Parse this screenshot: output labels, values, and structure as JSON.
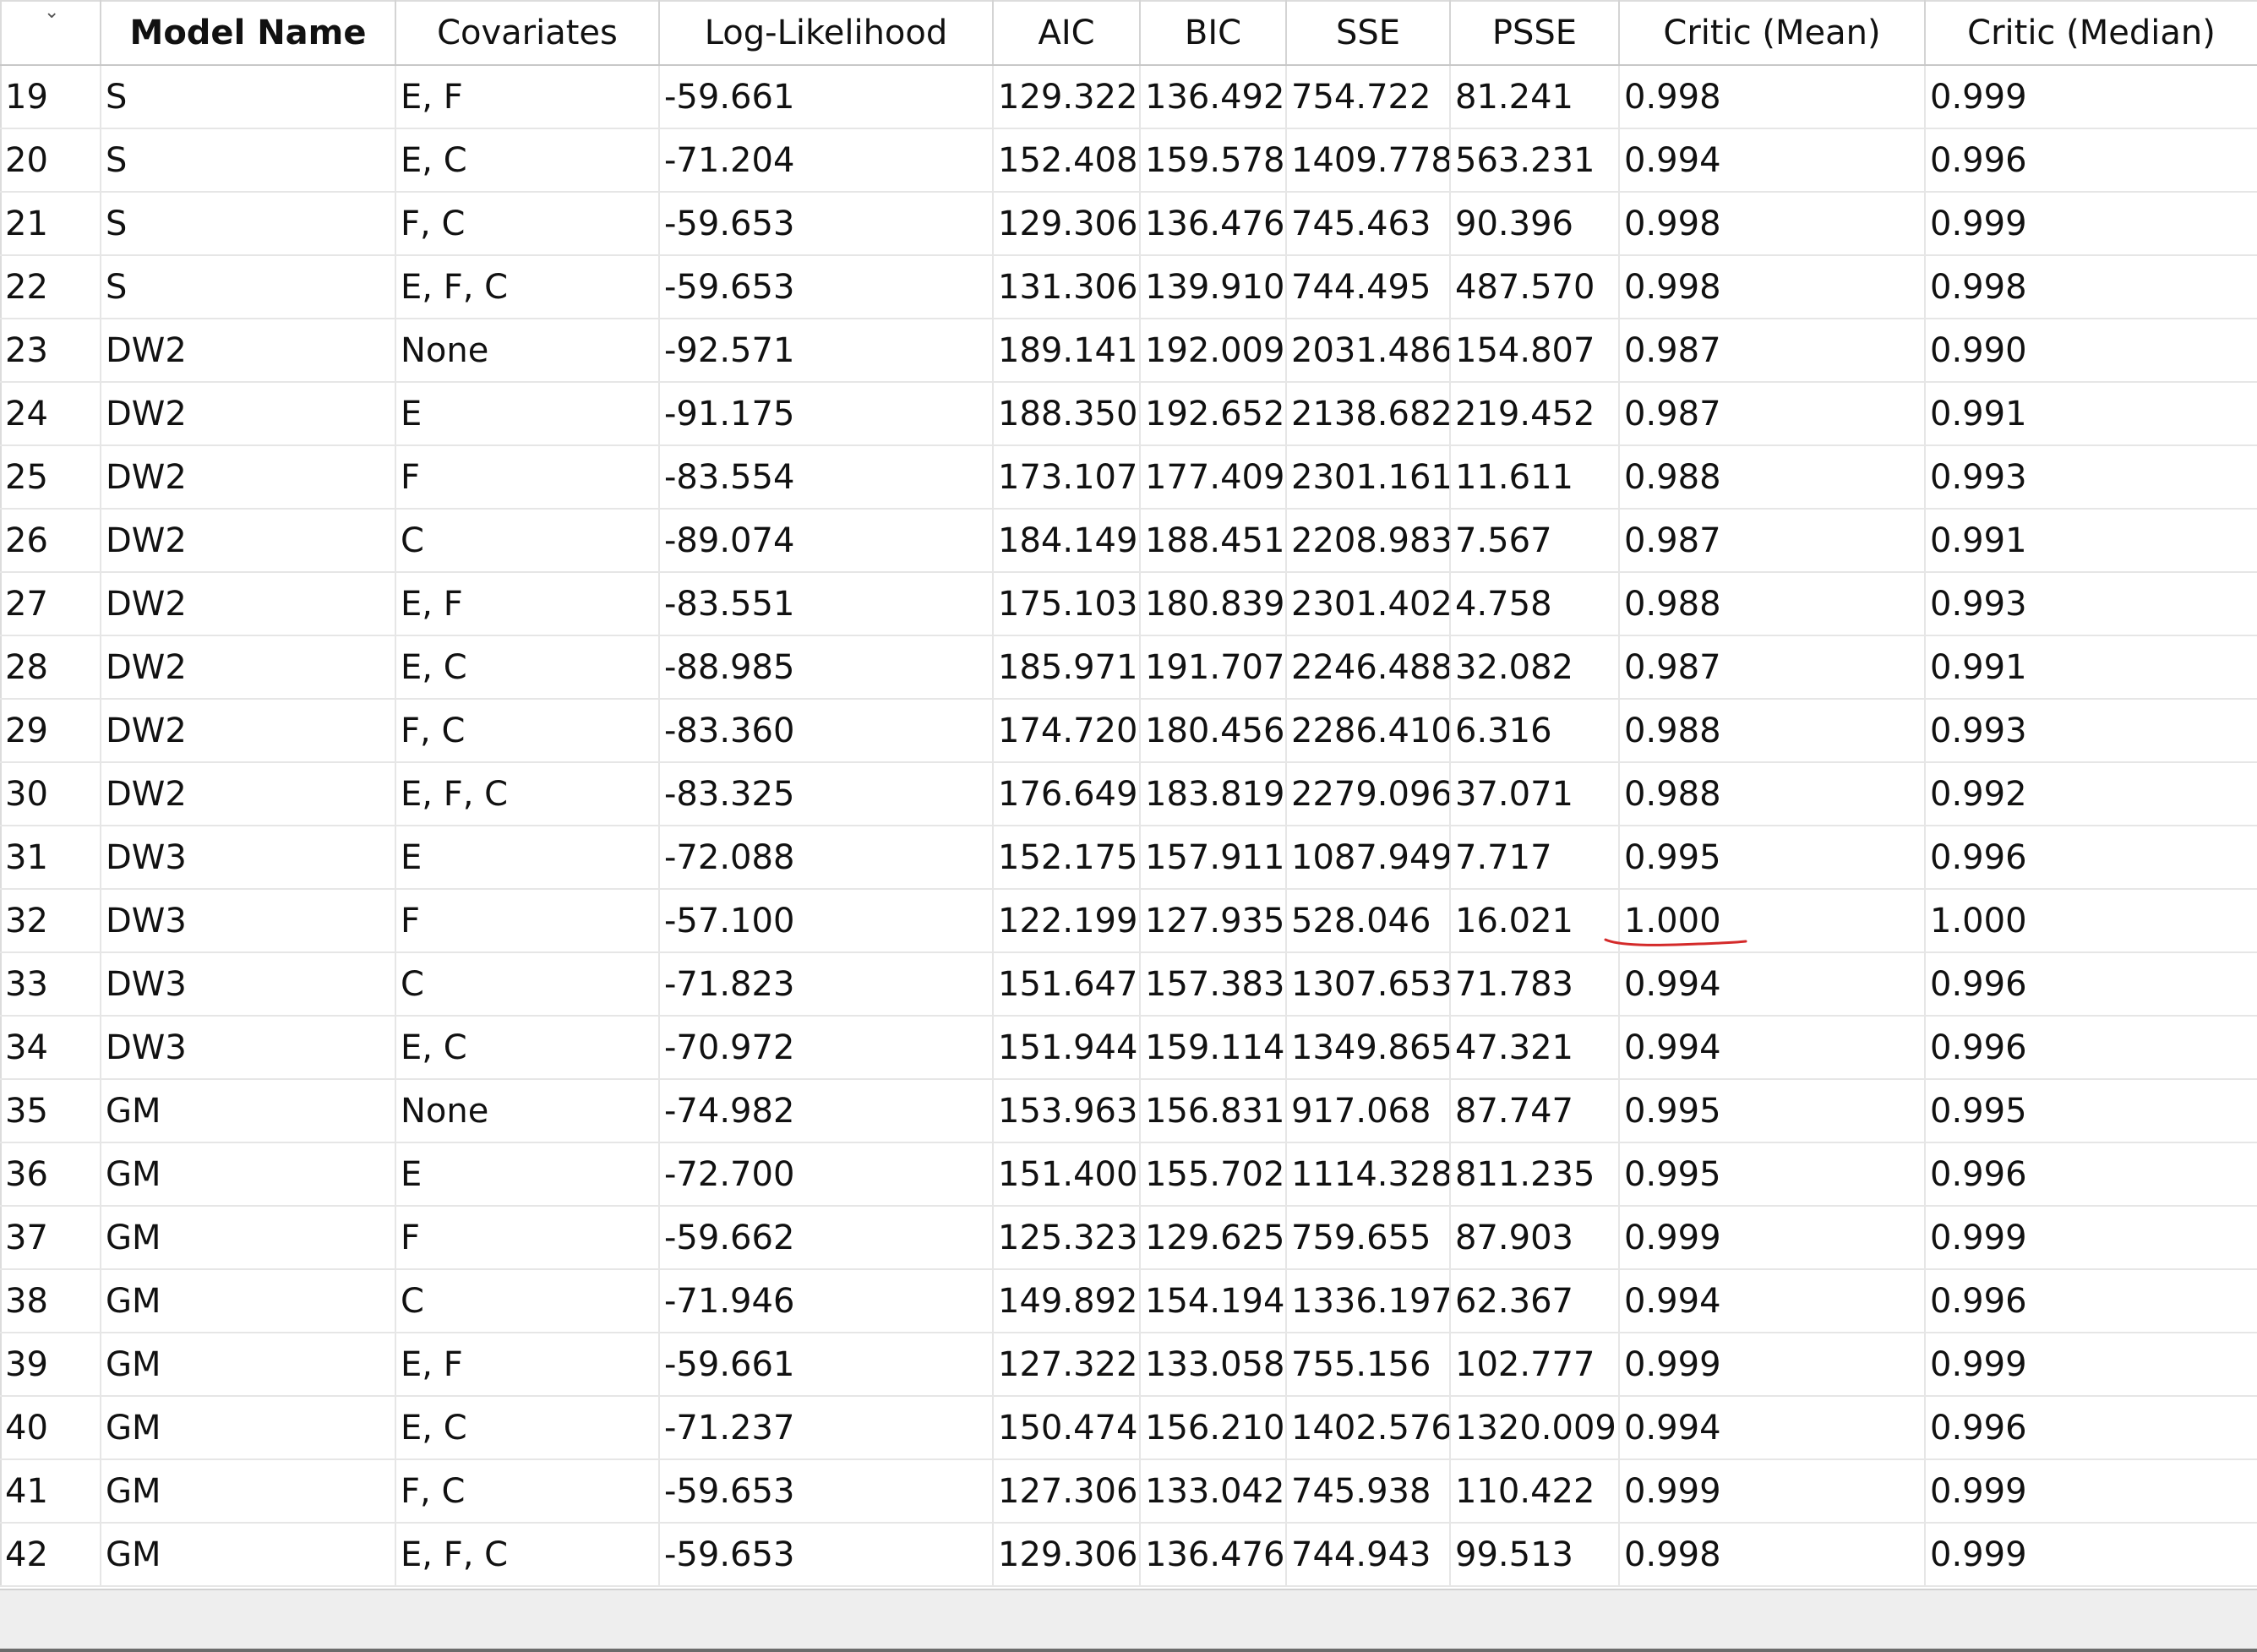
{
  "table": {
    "columns": [
      "",
      "Model Name",
      "Covariates",
      "Log-Likelihood",
      "AIC",
      "BIC",
      "SSE",
      "PSSE",
      "Critic (Mean)",
      "Critic (Median)"
    ],
    "rows": [
      [
        "19",
        "S",
        "E, F",
        "-59.661",
        "129.322",
        "136.492",
        "754.722",
        "81.241",
        "0.998",
        "0.999"
      ],
      [
        "20",
        "S",
        "E, C",
        "-71.204",
        "152.408",
        "159.578",
        "1409.778",
        "563.231",
        "0.994",
        "0.996"
      ],
      [
        "21",
        "S",
        "F, C",
        "-59.653",
        "129.306",
        "136.476",
        "745.463",
        "90.396",
        "0.998",
        "0.999"
      ],
      [
        "22",
        "S",
        "E, F, C",
        "-59.653",
        "131.306",
        "139.910",
        "744.495",
        "487.570",
        "0.998",
        "0.998"
      ],
      [
        "23",
        "DW2",
        "None",
        "-92.571",
        "189.141",
        "192.009",
        "2031.486",
        "154.807",
        "0.987",
        "0.990"
      ],
      [
        "24",
        "DW2",
        "E",
        "-91.175",
        "188.350",
        "192.652",
        "2138.682",
        "219.452",
        "0.987",
        "0.991"
      ],
      [
        "25",
        "DW2",
        "F",
        "-83.554",
        "173.107",
        "177.409",
        "2301.161",
        "11.611",
        "0.988",
        "0.993"
      ],
      [
        "26",
        "DW2",
        "C",
        "-89.074",
        "184.149",
        "188.451",
        "2208.983",
        "7.567",
        "0.987",
        "0.991"
      ],
      [
        "27",
        "DW2",
        "E, F",
        "-83.551",
        "175.103",
        "180.839",
        "2301.402",
        "4.758",
        "0.988",
        "0.993"
      ],
      [
        "28",
        "DW2",
        "E, C",
        "-88.985",
        "185.971",
        "191.707",
        "2246.488",
        "32.082",
        "0.987",
        "0.991"
      ],
      [
        "29",
        "DW2",
        "F, C",
        "-83.360",
        "174.720",
        "180.456",
        "2286.410",
        "6.316",
        "0.988",
        "0.993"
      ],
      [
        "30",
        "DW2",
        "E, F, C",
        "-83.325",
        "176.649",
        "183.819",
        "2279.096",
        "37.071",
        "0.988",
        "0.992"
      ],
      [
        "31",
        "DW3",
        "E",
        "-72.088",
        "152.175",
        "157.911",
        "1087.949",
        "7.717",
        "0.995",
        "0.996"
      ],
      [
        "32",
        "DW3",
        "F",
        "-57.100",
        "122.199",
        "127.935",
        "528.046",
        "16.021",
        "1.000",
        "1.000"
      ],
      [
        "33",
        "DW3",
        "C",
        "-71.823",
        "151.647",
        "157.383",
        "1307.653",
        "71.783",
        "0.994",
        "0.996"
      ],
      [
        "34",
        "DW3",
        "E, C",
        "-70.972",
        "151.944",
        "159.114",
        "1349.865",
        "47.321",
        "0.994",
        "0.996"
      ],
      [
        "35",
        "GM",
        "None",
        "-74.982",
        "153.963",
        "156.831",
        "917.068",
        "87.747",
        "0.995",
        "0.995"
      ],
      [
        "36",
        "GM",
        "E",
        "-72.700",
        "151.400",
        "155.702",
        "1114.328",
        "811.235",
        "0.995",
        "0.996"
      ],
      [
        "37",
        "GM",
        "F",
        "-59.662",
        "125.323",
        "129.625",
        "759.655",
        "87.903",
        "0.999",
        "0.999"
      ],
      [
        "38",
        "GM",
        "C",
        "-71.946",
        "149.892",
        "154.194",
        "1336.197",
        "62.367",
        "0.994",
        "0.996"
      ],
      [
        "39",
        "GM",
        "E, F",
        "-59.661",
        "127.322",
        "133.058",
        "755.156",
        "102.777",
        "0.999",
        "0.999"
      ],
      [
        "40",
        "GM",
        "E, C",
        "-71.237",
        "150.474",
        "156.210",
        "1402.576",
        "1320.009",
        "0.994",
        "0.996"
      ],
      [
        "41",
        "GM",
        "F, C",
        "-59.653",
        "127.306",
        "133.042",
        "745.938",
        "110.422",
        "0.999",
        "0.999"
      ],
      [
        "42",
        "GM",
        "E, F, C",
        "-59.653",
        "129.306",
        "136.476",
        "744.943",
        "99.513",
        "0.998",
        "0.999"
      ]
    ]
  },
  "sort_indicator": "chevron-down",
  "annotation": {
    "color": "#d42a2a",
    "target": "Critic (Mean) of row 32"
  }
}
